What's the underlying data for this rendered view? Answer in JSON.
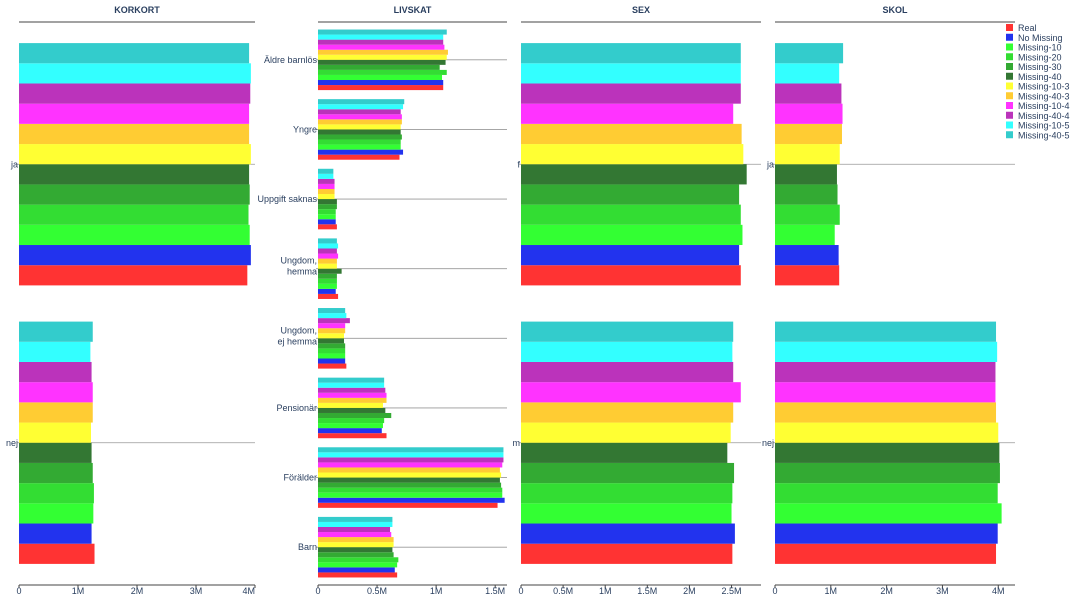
{
  "chart_data": {
    "type": "bar",
    "orientation": "horizontal",
    "series_names": [
      "Real",
      "No Missing",
      "Missing-10",
      "Missing-20",
      "Missing-30",
      "Missing-40",
      "Missing-10-3",
      "Missing-40-3",
      "Missing-10-4",
      "Missing-40-4",
      "Missing-10-5",
      "Missing-40-5"
    ],
    "colors": [
      "#ff3333",
      "#2233ee",
      "#33ff33",
      "#33dd33",
      "#33aa33",
      "#337733",
      "#ffff33",
      "#ffcc33",
      "#ff33ff",
      "#bb33bb",
      "#33ffff",
      "#33cccc"
    ],
    "legend_position": "top-right",
    "panels": [
      {
        "title": "KORKORT",
        "xlim": [
          0,
          4000000
        ],
        "xticks": [
          0,
          1000000,
          2000000,
          3000000,
          4000000
        ],
        "xtick_labels": [
          "0",
          "1M",
          "2M",
          "3M",
          "4M"
        ],
        "categories": [
          "nej",
          "ja"
        ],
        "values": [
          [
            1280000,
            1230000,
            1260000,
            1270000,
            1250000,
            1230000,
            1220000,
            1250000,
            1250000,
            1230000,
            1210000,
            1250000
          ],
          [
            3870000,
            3930000,
            3910000,
            3890000,
            3910000,
            3900000,
            3930000,
            3900000,
            3900000,
            3920000,
            3930000,
            3900000
          ]
        ]
      },
      {
        "title": "LIVSKAT",
        "xlim": [
          0,
          1600000
        ],
        "xticks": [
          0,
          500000,
          1000000,
          1500000
        ],
        "xtick_labels": [
          "0",
          "0.5M",
          "1M",
          "1.5M"
        ],
        "categories": [
          "Barn",
          "Förälder",
          "Pensionär",
          "Ungdom, ej hemma",
          "Ungdom, hemma",
          "Uppgift saknas",
          "Yngre",
          "Äldre barnlös"
        ],
        "values": [
          [
            670000,
            650000,
            670000,
            680000,
            640000,
            630000,
            640000,
            640000,
            620000,
            610000,
            630000,
            630000
          ],
          [
            1520000,
            1580000,
            1560000,
            1560000,
            1550000,
            1540000,
            1550000,
            1540000,
            1560000,
            1570000,
            1570000,
            1570000
          ],
          [
            580000,
            540000,
            550000,
            560000,
            620000,
            570000,
            550000,
            580000,
            580000,
            570000,
            560000,
            560000
          ],
          [
            240000,
            230000,
            230000,
            230000,
            230000,
            220000,
            220000,
            230000,
            230000,
            270000,
            240000,
            230000
          ],
          [
            170000,
            150000,
            160000,
            160000,
            160000,
            200000,
            160000,
            160000,
            170000,
            160000,
            170000,
            160000
          ],
          [
            160000,
            150000,
            150000,
            150000,
            160000,
            160000,
            140000,
            140000,
            140000,
            140000,
            130000,
            130000
          ],
          [
            690000,
            720000,
            700000,
            700000,
            710000,
            700000,
            700000,
            710000,
            710000,
            700000,
            720000,
            730000
          ],
          [
            1060000,
            1060000,
            1050000,
            1090000,
            1030000,
            1080000,
            1090000,
            1100000,
            1070000,
            1060000,
            1060000,
            1090000
          ]
        ]
      },
      {
        "title": "SEX",
        "xlim": [
          0,
          2850000
        ],
        "xticks": [
          0,
          500000,
          1000000,
          1500000,
          2000000,
          2500000
        ],
        "xtick_labels": [
          "0",
          "0.5M",
          "1M",
          "1.5M",
          "2M",
          "2.5M"
        ],
        "categories": [
          "m",
          "f"
        ],
        "values": [
          [
            2510000,
            2540000,
            2500000,
            2510000,
            2530000,
            2450000,
            2490000,
            2520000,
            2610000,
            2520000,
            2510000,
            2520000
          ],
          [
            2610000,
            2590000,
            2630000,
            2610000,
            2590000,
            2680000,
            2640000,
            2620000,
            2520000,
            2610000,
            2610000,
            2610000
          ]
        ]
      },
      {
        "title": "SKOL",
        "xlim": [
          0,
          4300000
        ],
        "xticks": [
          0,
          1000000,
          2000000,
          3000000,
          4000000
        ],
        "xtick_labels": [
          "0",
          "1M",
          "2M",
          "3M",
          "4M"
        ],
        "categories": [
          "nej",
          "ja"
        ],
        "values": [
          [
            3960000,
            3990000,
            4060000,
            3990000,
            4030000,
            4020000,
            4000000,
            3960000,
            3950000,
            3950000,
            3980000,
            3960000
          ],
          [
            1150000,
            1140000,
            1070000,
            1160000,
            1120000,
            1110000,
            1160000,
            1200000,
            1210000,
            1190000,
            1150000,
            1220000
          ]
        ]
      }
    ]
  }
}
